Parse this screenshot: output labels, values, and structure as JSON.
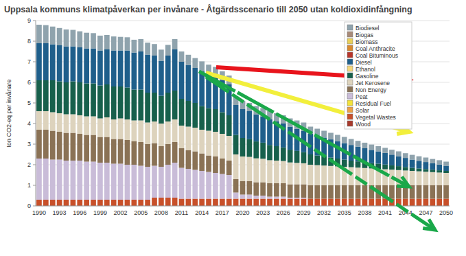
{
  "chart_data": {
    "type": "bar",
    "stacked": true,
    "title": "Uppsala kommuns klimatpåverkan per invånare - Åtgärdsscenario till 2050 utan koldioxidinfångning",
    "y_label": "ton CO2-eq per invånare",
    "categories": [
      "1990",
      null,
      null,
      "1993",
      null,
      null,
      "1996",
      null,
      null,
      "1999",
      null,
      null,
      "2002",
      null,
      null,
      "2005",
      null,
      null,
      "2008",
      null,
      null,
      "2011",
      null,
      null,
      "2014",
      null,
      null,
      "2017",
      null,
      null,
      "2020",
      null,
      null,
      "2023",
      null,
      null,
      "2026",
      null,
      null,
      "2029",
      null,
      null,
      "2032",
      null,
      null,
      "2035",
      null,
      null,
      "2038",
      null,
      null,
      "2041",
      null,
      null,
      "2044",
      null,
      null,
      "2047",
      null,
      null,
      "2050"
    ],
    "ylim": [
      0,
      9
    ],
    "yticks": [
      0,
      1,
      2,
      3,
      4,
      5,
      6,
      7,
      8,
      9
    ],
    "grid": true,
    "legend": "top-right",
    "series": [
      {
        "name": "Biodiesel",
        "color": "#8fa3ad",
        "values": [
          0.9,
          0.88,
          0.86,
          0.84,
          0.82,
          0.8,
          0.78,
          0.76,
          0.74,
          0.72,
          0.7,
          0.68,
          0.66,
          0.64,
          0.62,
          0.6,
          0.58,
          0.56,
          0.54,
          0.52,
          0.5,
          0.5,
          0.49,
          0.48,
          0.47,
          0.46,
          0.45,
          0.44,
          0.43,
          0.42,
          0.4,
          0.4,
          0.4,
          0.4,
          0.4,
          0.4,
          0.4,
          0.4,
          0.4,
          0.4,
          0.35,
          0.34,
          0.33,
          0.32,
          0.31,
          0.3,
          0.29,
          0.28,
          0.27,
          0.26,
          0.25,
          0.25,
          0.24,
          0.24,
          0.23,
          0.23,
          0.22,
          0.22,
          0.21,
          0.21,
          0.2
        ]
      },
      {
        "name": "Biogas",
        "color": "#a88a78",
        "values": [
          0,
          0,
          0,
          0,
          0,
          0,
          0,
          0,
          0,
          0,
          0,
          0,
          0,
          0,
          0,
          0,
          0,
          0,
          0,
          0,
          0,
          0,
          0,
          0,
          0,
          0,
          0,
          0,
          0,
          0,
          0,
          0,
          0,
          0,
          0,
          0,
          0,
          0,
          0,
          0,
          0,
          0,
          0,
          0,
          0,
          0,
          0,
          0,
          0,
          0,
          0,
          0,
          0,
          0,
          0,
          0,
          0,
          0,
          0,
          0,
          0
        ]
      },
      {
        "name": "Biomass",
        "color": "#e8cf5a",
        "values": [
          0,
          0,
          0,
          0,
          0,
          0,
          0,
          0,
          0,
          0,
          0,
          0,
          0,
          0,
          0,
          0,
          0,
          0,
          0,
          0,
          0,
          0,
          0,
          0,
          0,
          0,
          0,
          0,
          0,
          0,
          0,
          0,
          0,
          0,
          0,
          0,
          0,
          0,
          0,
          0,
          0,
          0,
          0,
          0,
          0,
          0,
          0,
          0,
          0,
          0,
          0,
          0,
          0,
          0,
          0,
          0,
          0,
          0,
          0,
          0,
          0
        ]
      },
      {
        "name": "Coal Anthracite",
        "color": "#d8892f",
        "values": [
          0,
          0,
          0,
          0,
          0,
          0,
          0,
          0,
          0,
          0,
          0,
          0,
          0,
          0,
          0,
          0,
          0,
          0,
          0,
          0,
          0,
          0,
          0,
          0,
          0,
          0,
          0,
          0,
          0,
          0,
          0,
          0,
          0,
          0,
          0,
          0,
          0,
          0,
          0,
          0,
          0,
          0,
          0,
          0,
          0,
          0,
          0,
          0,
          0,
          0,
          0,
          0,
          0,
          0,
          0,
          0,
          0,
          0,
          0,
          0,
          0
        ]
      },
      {
        "name": "Coal Bituminous",
        "color": "#b8352a",
        "values": [
          0,
          0,
          0,
          0,
          0,
          0,
          0,
          0,
          0,
          0,
          0,
          0,
          0,
          0,
          0,
          0,
          0,
          0,
          0,
          0,
          0,
          0,
          0,
          0,
          0,
          0,
          0,
          0,
          0,
          0,
          0,
          0,
          0,
          0,
          0,
          0,
          0,
          0,
          0,
          0,
          0,
          0,
          0,
          0,
          0,
          0,
          0,
          0,
          0,
          0,
          0,
          0,
          0,
          0,
          0,
          0,
          0,
          0,
          0,
          0,
          0
        ]
      },
      {
        "name": "Diesel",
        "color": "#1f5f8b",
        "values": [
          1.8,
          1.8,
          1.75,
          1.75,
          1.75,
          1.7,
          1.7,
          1.7,
          1.7,
          1.7,
          1.7,
          1.75,
          1.75,
          1.8,
          1.8,
          1.85,
          1.85,
          1.8,
          1.7,
          1.8,
          2.0,
          1.8,
          1.75,
          1.7,
          1.7,
          1.65,
          1.6,
          1.55,
          1.5,
          1.45,
          1.4,
          1.36,
          1.32,
          1.28,
          1.24,
          1.2,
          1.16,
          1.12,
          1.08,
          1.04,
          1.0,
          0.96,
          0.92,
          0.88,
          0.84,
          0.8,
          0.76,
          0.72,
          0.68,
          0.64,
          0.6,
          0.56,
          0.52,
          0.48,
          0.44,
          0.4,
          0.37,
          0.34,
          0.31,
          0.28,
          0.25
        ]
      },
      {
        "name": "Ethanol",
        "color": "#f5d77a",
        "values": [
          0,
          0,
          0,
          0,
          0,
          0,
          0,
          0,
          0,
          0,
          0,
          0,
          0,
          0,
          0,
          0,
          0,
          0,
          0,
          0,
          0,
          0,
          0,
          0,
          0,
          0,
          0,
          0,
          0,
          0,
          0,
          0,
          0,
          0,
          0,
          0,
          0,
          0,
          0,
          0,
          0,
          0,
          0,
          0,
          0,
          0,
          0,
          0,
          0,
          0,
          0,
          0,
          0,
          0,
          0,
          0,
          0,
          0,
          0,
          0,
          0
        ]
      },
      {
        "name": "Gasoline",
        "color": "#17604c",
        "values": [
          1.5,
          1.5,
          1.55,
          1.55,
          1.55,
          1.6,
          1.6,
          1.6,
          1.6,
          1.6,
          1.6,
          1.6,
          1.55,
          1.55,
          1.5,
          1.5,
          1.45,
          1.4,
          1.35,
          1.4,
          1.4,
          1.3,
          1.25,
          1.2,
          1.15,
          1.1,
          1.1,
          1.05,
          1.0,
          0.95,
          0.9,
          0.86,
          0.82,
          0.78,
          0.74,
          0.7,
          0.66,
          0.62,
          0.58,
          0.54,
          0.5,
          0.47,
          0.44,
          0.41,
          0.38,
          0.35,
          0.32,
          0.3,
          0.28,
          0.26,
          0.25,
          0.23,
          0.21,
          0.19,
          0.17,
          0.15,
          0.14,
          0.13,
          0.12,
          0.11,
          0.1
        ]
      },
      {
        "name": "Jet Kerosene",
        "color": "#ddd3bd",
        "values": [
          0.9,
          0.9,
          0.9,
          0.9,
          0.9,
          0.9,
          0.9,
          0.9,
          0.9,
          0.9,
          0.95,
          0.95,
          1.0,
          1.0,
          1.0,
          1.05,
          1.05,
          1.05,
          1.1,
          1.1,
          1.1,
          1.1,
          1.15,
          1.15,
          1.15,
          1.2,
          1.2,
          1.2,
          1.2,
          1.2,
          1.2,
          1.18,
          1.16,
          1.14,
          1.12,
          1.1,
          1.08,
          1.06,
          1.04,
          1.02,
          1.0,
          0.98,
          0.96,
          0.94,
          0.92,
          0.9,
          0.88,
          0.86,
          0.84,
          0.82,
          0.8,
          0.78,
          0.76,
          0.74,
          0.72,
          0.7,
          0.68,
          0.66,
          0.64,
          0.62,
          0.6
        ]
      },
      {
        "name": "Non Energy",
        "color": "#8a7255",
        "values": [
          1.4,
          1.4,
          1.4,
          1.35,
          1.35,
          1.35,
          1.3,
          1.3,
          1.3,
          1.25,
          1.25,
          1.2,
          1.2,
          1.2,
          1.15,
          1.15,
          1.1,
          1.1,
          1.0,
          1.0,
          1.0,
          0.95,
          0.9,
          0.9,
          0.85,
          0.8,
          0.8,
          0.75,
          0.7,
          0.65,
          0.65,
          0.65,
          0.65,
          0.65,
          0.65,
          0.65,
          0.65,
          0.65,
          0.65,
          0.65,
          0.65,
          0.65,
          0.65,
          0.65,
          0.65,
          0.65,
          0.65,
          0.65,
          0.65,
          0.65,
          0.65,
          0.65,
          0.65,
          0.65,
          0.65,
          0.65,
          0.65,
          0.65,
          0.65,
          0.65,
          0.65
        ]
      },
      {
        "name": "Peat",
        "color": "#c9bcd8",
        "values": [
          2.0,
          2.0,
          1.95,
          1.95,
          1.9,
          1.9,
          1.9,
          1.85,
          1.85,
          1.8,
          1.8,
          1.75,
          1.75,
          1.7,
          1.7,
          1.65,
          1.6,
          1.55,
          1.5,
          1.6,
          1.7,
          1.5,
          1.45,
          1.4,
          1.35,
          1.3,
          1.25,
          1.2,
          1.15,
          0.3,
          0.2,
          0.2,
          0.15,
          0.15,
          0.1,
          0.1,
          0.1,
          0.05,
          0.05,
          0.05,
          0,
          0,
          0,
          0,
          0,
          0,
          0,
          0,
          0,
          0,
          0,
          0,
          0,
          0,
          0,
          0,
          0,
          0,
          0,
          0,
          0
        ]
      },
      {
        "name": "Residual Fuel",
        "color": "#f2e23a",
        "values": [
          0,
          0,
          0,
          0,
          0,
          0,
          0,
          0,
          0,
          0,
          0,
          0,
          0,
          0,
          0,
          0,
          0,
          0,
          0,
          0,
          0,
          0,
          0,
          0,
          0,
          0,
          0,
          0,
          0,
          0,
          0,
          0,
          0,
          0,
          0,
          0,
          0,
          0,
          0,
          0,
          0,
          0,
          0,
          0,
          0,
          0,
          0,
          0,
          0,
          0,
          0,
          0,
          0,
          0,
          0,
          0,
          0,
          0,
          0,
          0,
          0
        ]
      },
      {
        "name": "Solar",
        "color": "#eba044",
        "values": [
          0,
          0,
          0,
          0,
          0,
          0,
          0,
          0,
          0,
          0,
          0,
          0,
          0,
          0,
          0,
          0,
          0,
          0,
          0,
          0,
          0,
          0,
          0,
          0,
          0,
          0,
          0,
          0,
          0,
          0,
          0,
          0,
          0,
          0,
          0,
          0,
          0,
          0,
          0,
          0,
          0,
          0,
          0,
          0,
          0,
          0,
          0,
          0,
          0,
          0,
          0,
          0,
          0,
          0,
          0,
          0,
          0,
          0,
          0,
          0,
          0
        ]
      },
      {
        "name": "Vegetal Wastes",
        "color": "#c8502a",
        "values": [
          0.3,
          0.3,
          0.3,
          0.3,
          0.3,
          0.3,
          0.3,
          0.3,
          0.3,
          0.3,
          0.3,
          0.3,
          0.3,
          0.3,
          0.3,
          0.3,
          0.3,
          0.4,
          0.4,
          0.4,
          0.4,
          0.35,
          0.35,
          0.35,
          0.35,
          0.35,
          0.35,
          0.35,
          0.35,
          0.35,
          0.35,
          0.35,
          0.35,
          0.35,
          0.35,
          0.35,
          0.35,
          0.35,
          0.35,
          0.35,
          0.35,
          0.35,
          0.35,
          0.35,
          0.35,
          0.35,
          0.35,
          0.35,
          0.35,
          0.35,
          0.35,
          0.35,
          0.35,
          0.35,
          0.35,
          0.35,
          0.35,
          0.35,
          0.35,
          0.35,
          0.35
        ]
      },
      {
        "name": "Wood",
        "color": "#a83a2c",
        "values": [
          0,
          0,
          0,
          0,
          0,
          0,
          0,
          0,
          0,
          0,
          0,
          0,
          0,
          0,
          0,
          0,
          0,
          0,
          0,
          0,
          0,
          0,
          0,
          0,
          0,
          0,
          0,
          0,
          0,
          0,
          0,
          0,
          0,
          0,
          0,
          0,
          0,
          0,
          0,
          0,
          0,
          0,
          0,
          0,
          0,
          0,
          0,
          0,
          0,
          0,
          0,
          0,
          0,
          0,
          0,
          0,
          0,
          0,
          0,
          0,
          0
        ]
      }
    ]
  }
}
